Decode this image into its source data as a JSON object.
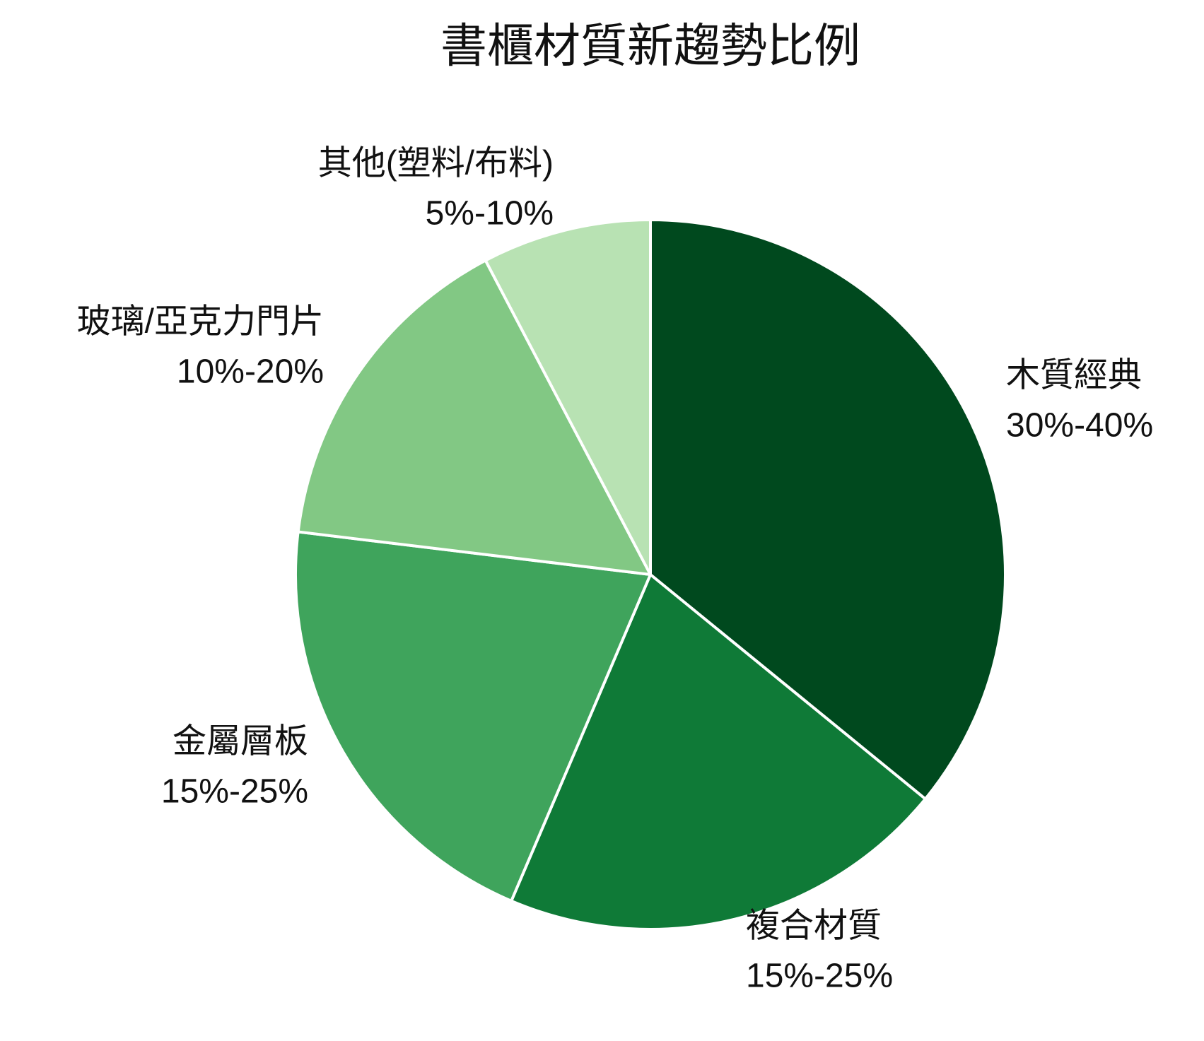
{
  "chart_data": {
    "type": "pie",
    "title": "書櫃材質新趨勢比例",
    "categories": [
      "木質經典",
      "複合材質",
      "金屬層板",
      "玻璃/亞克力門片",
      "其他(塑料/布料)"
    ],
    "values": [
      35,
      20,
      20,
      15,
      7.5
    ],
    "value_labels": [
      "30%-40%",
      "15%-25%",
      "15%-25%",
      "10%-20%",
      "5%-10%"
    ],
    "colors": [
      "#00491e",
      "#0f7a37",
      "#3fa45c",
      "#82c884",
      "#b8e2b3"
    ]
  }
}
